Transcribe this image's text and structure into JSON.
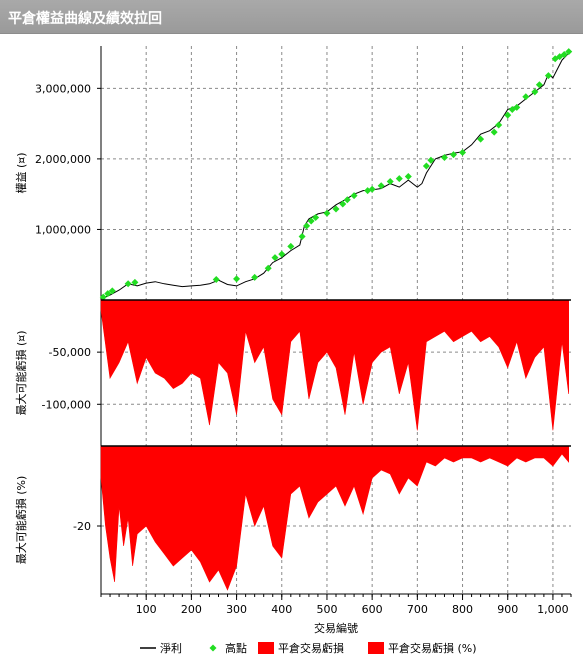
{
  "window": {
    "title": "平倉權益曲線及績效拉回"
  },
  "chart_data": [
    {
      "type": "line",
      "panel": "equity",
      "ylabel": "權益 (¤)",
      "ylim": [
        0,
        3600000
      ],
      "yticks": [
        1000000,
        2000000,
        3000000
      ],
      "ytick_labels": [
        "1,000,000",
        "2,000,000",
        "3,000,000"
      ],
      "grid": true,
      "series": [
        {
          "name": "淨利",
          "color": "#000000",
          "x": [
            0,
            20,
            40,
            60,
            80,
            100,
            120,
            140,
            160,
            180,
            200,
            220,
            240,
            260,
            280,
            300,
            320,
            340,
            360,
            380,
            400,
            420,
            440,
            450,
            460,
            480,
            500,
            520,
            540,
            560,
            580,
            600,
            620,
            640,
            660,
            680,
            700,
            710,
            720,
            740,
            760,
            780,
            800,
            820,
            840,
            860,
            880,
            900,
            920,
            940,
            960,
            980,
            990,
            1000,
            1020,
            1035
          ],
          "y": [
            20000,
            70000,
            140000,
            230000,
            200000,
            240000,
            260000,
            230000,
            210000,
            190000,
            200000,
            210000,
            230000,
            280000,
            220000,
            200000,
            260000,
            300000,
            380000,
            530000,
            600000,
            700000,
            780000,
            1050000,
            1150000,
            1220000,
            1250000,
            1350000,
            1420000,
            1500000,
            1550000,
            1560000,
            1580000,
            1650000,
            1600000,
            1700000,
            1600000,
            1650000,
            1800000,
            2000000,
            2050000,
            2080000,
            2100000,
            2200000,
            2350000,
            2400000,
            2500000,
            2700000,
            2750000,
            2850000,
            2950000,
            3050000,
            3200000,
            3150000,
            3400000,
            3500000
          ]
        },
        {
          "name": "高點",
          "color": "#22dd22",
          "marker": "diamond",
          "x": [
            5,
            15,
            25,
            60,
            75,
            255,
            300,
            340,
            370,
            385,
            400,
            420,
            445,
            455,
            465,
            475,
            500,
            520,
            535,
            545,
            560,
            590,
            600,
            620,
            640,
            660,
            680,
            720,
            730,
            760,
            780,
            800,
            840,
            870,
            880,
            900,
            910,
            920,
            940,
            960,
            970,
            990,
            1005,
            1015,
            1025,
            1035
          ],
          "y": [
            40000,
            90000,
            130000,
            230000,
            250000,
            290000,
            300000,
            320000,
            450000,
            600000,
            650000,
            760000,
            900000,
            1050000,
            1120000,
            1170000,
            1230000,
            1290000,
            1360000,
            1420000,
            1480000,
            1550000,
            1570000,
            1620000,
            1680000,
            1720000,
            1750000,
            1900000,
            1980000,
            2020000,
            2060000,
            2090000,
            2280000,
            2380000,
            2480000,
            2620000,
            2700000,
            2730000,
            2880000,
            2950000,
            3050000,
            3180000,
            3420000,
            3450000,
            3480000,
            3520000
          ]
        }
      ]
    },
    {
      "type": "area",
      "panel": "drawdown_value",
      "ylabel": "最大可能虧損 (¤)",
      "ylim": [
        -140000,
        0
      ],
      "yticks": [
        -50000,
        -100000
      ],
      "ytick_labels": [
        "-50,000",
        "-100,000"
      ],
      "grid": true,
      "series": [
        {
          "name": "平倉交易虧損",
          "color": "#ff0000",
          "x": [
            0,
            20,
            40,
            60,
            80,
            100,
            120,
            140,
            160,
            180,
            200,
            220,
            240,
            260,
            280,
            300,
            320,
            340,
            360,
            380,
            400,
            420,
            440,
            460,
            480,
            500,
            520,
            540,
            560,
            580,
            600,
            620,
            640,
            660,
            680,
            700,
            720,
            740,
            760,
            780,
            800,
            820,
            840,
            860,
            880,
            900,
            920,
            940,
            960,
            980,
            1000,
            1020,
            1035
          ],
          "y": [
            -10000,
            -75000,
            -60000,
            -40000,
            -80000,
            -55000,
            -70000,
            -75000,
            -85000,
            -80000,
            -70000,
            -75000,
            -120000,
            -60000,
            -70000,
            -110000,
            -30000,
            -60000,
            -45000,
            -95000,
            -110000,
            -40000,
            -30000,
            -95000,
            -60000,
            -50000,
            -65000,
            -110000,
            -50000,
            -100000,
            -60000,
            -50000,
            -45000,
            -90000,
            -60000,
            -125000,
            -40000,
            -35000,
            -30000,
            -40000,
            -35000,
            -30000,
            -40000,
            -35000,
            -45000,
            -65000,
            -40000,
            -75000,
            -55000,
            -45000,
            -125000,
            -40000,
            -90000
          ]
        }
      ]
    },
    {
      "type": "area",
      "panel": "drawdown_percent",
      "ylabel": "最大可能虧損 (%)",
      "ylim": [
        -37,
        0
      ],
      "yticks": [
        -20
      ],
      "ytick_labels": [
        "-20"
      ],
      "grid": true,
      "series": [
        {
          "name": "平倉交易虧損 (%)",
          "color": "#ff0000",
          "x": [
            0,
            10,
            20,
            30,
            40,
            50,
            60,
            70,
            80,
            100,
            120,
            140,
            160,
            180,
            200,
            220,
            240,
            260,
            280,
            300,
            320,
            340,
            360,
            380,
            400,
            420,
            440,
            460,
            480,
            500,
            520,
            540,
            560,
            580,
            600,
            620,
            640,
            660,
            680,
            700,
            720,
            740,
            760,
            780,
            800,
            820,
            840,
            860,
            880,
            900,
            920,
            940,
            960,
            980,
            1000,
            1020,
            1035
          ],
          "y": [
            -8,
            -20,
            -28,
            -34,
            -15,
            -25,
            -18,
            -30,
            -22,
            -20,
            -24,
            -27,
            -30,
            -28,
            -26,
            -29,
            -34,
            -31,
            -36,
            -30,
            -12,
            -20,
            -15,
            -25,
            -28,
            -12,
            -10,
            -18,
            -14,
            -12,
            -10,
            -15,
            -10,
            -17,
            -8,
            -6,
            -7,
            -12,
            -8,
            -10,
            -4,
            -5,
            -3,
            -4,
            -3,
            -3,
            -4,
            -3,
            -4,
            -5,
            -3,
            -4,
            -3,
            -3,
            -5,
            -2,
            -4
          ]
        }
      ]
    }
  ],
  "xaxis": {
    "label": "交易編號",
    "xlim": [
      0,
      1040
    ],
    "ticks": [
      100,
      200,
      300,
      400,
      500,
      600,
      700,
      800,
      900,
      1000
    ],
    "tick_labels": [
      "100",
      "200",
      "300",
      "400",
      "500",
      "600",
      "700",
      "800",
      "900",
      "1,000"
    ]
  },
  "legend": {
    "position": "bottom",
    "items": [
      {
        "label": "淨利",
        "kind": "line",
        "color": "#000000"
      },
      {
        "label": "高點",
        "kind": "diamond",
        "color": "#22dd22"
      },
      {
        "label": "平倉交易虧損",
        "kind": "box",
        "color": "#ff0000"
      },
      {
        "label": "平倉交易虧損 (%)",
        "kind": "box",
        "color": "#ff0000"
      }
    ]
  }
}
